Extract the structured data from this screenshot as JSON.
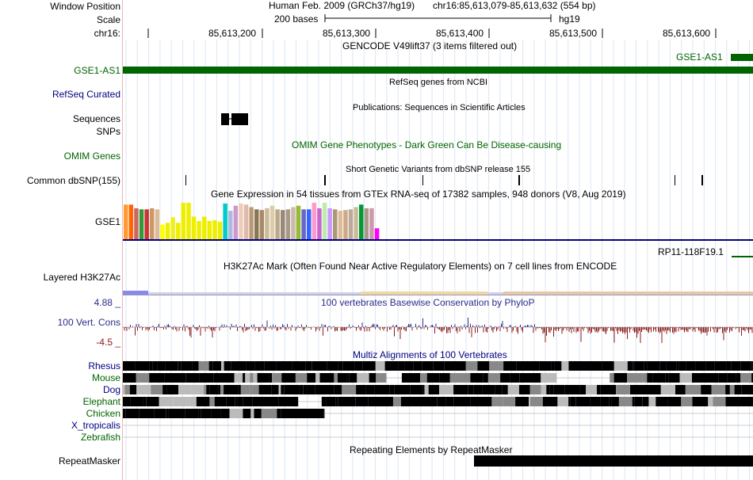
{
  "header": {
    "window_position_label": "Window Position",
    "scale_label": "Scale",
    "chrom_label": "chr16:",
    "assembly": "Human Feb. 2009 (GRCh37/hg19)",
    "position": "chr16:85,613,079-85,613,632 (554 bp)",
    "scale_text": "200 bases",
    "scale_db": "hg19",
    "ticks": [
      "85,613,200",
      "85,613,300",
      "85,613,400",
      "85,613,500",
      "85,613,600"
    ]
  },
  "tracks": {
    "gencode": {
      "title": "GENCODE V49lift37 (3 items filtered out)",
      "label": "GSE1-AS1",
      "item": "GSE1-AS1",
      "color": "#006400"
    },
    "refseq": {
      "title": "RefSeq genes from NCBI",
      "label": "RefSeq Curated"
    },
    "publications": {
      "title": "Publications: Sequences in Scientific Articles",
      "label": "Sequences"
    },
    "snps": {
      "label": "SNPs"
    },
    "omim": {
      "title": "OMIM Gene Phenotypes - Dark Green Can Be Disease-causing",
      "label": "OMIM Genes"
    },
    "dbsnp": {
      "title": "Short Genetic Variants from dbSNP release 155",
      "label": "Common dbSNP(155)"
    },
    "gtex": {
      "title": "Gene Expression in 54 tissues from GTEx RNA-seq of 17382 samples, 948 donors (V8, Aug 2019)",
      "label": "GSE1",
      "item": "RP11-118F19.1"
    },
    "h3k27ac": {
      "title": "H3K27Ac Mark (Often Found Near Active Regulatory Elements) on 7 cell lines from ENCODE",
      "label": "Layered H3K27Ac"
    },
    "phylop": {
      "title": "100 vertebrates Basewise Conservation by PhyloP",
      "label": "100 Vert. Cons",
      "max": "4.88 _",
      "min": "-4.5 _"
    },
    "multiz": {
      "title": "Multiz Alignments of 100 Vertebrates",
      "species": [
        "Rhesus",
        "Mouse",
        "Dog",
        "Elephant",
        "Chicken",
        "X_tropicalis",
        "Zebrafish"
      ]
    },
    "repeatmasker": {
      "title": "Repeating Elements by RepeatMasker",
      "label": "RepeatMasker"
    }
  },
  "colors": {
    "gencode_green": "#006400",
    "refseq_navy": "#000080",
    "phylop_pos": "#2c2c8c",
    "phylop_neg": "#8b1a1a",
    "grid": "#dde6f4",
    "divider": "#e8b8b8"
  },
  "gtex_bars": [
    {
      "color": "#ff9933",
      "level": 0.95
    },
    {
      "color": "#ff6600",
      "level": 0.95
    },
    {
      "color": "#cc6666",
      "level": 0.85
    },
    {
      "color": "#339933",
      "level": 0.82
    },
    {
      "color": "#cc3333",
      "level": 0.82
    },
    {
      "color": "#cc9966",
      "level": 0.85
    },
    {
      "color": "#ddbb99",
      "level": 0.82
    },
    {
      "color": "#ffff00",
      "level": 0.4
    },
    {
      "color": "#eeee00",
      "level": 0.45
    },
    {
      "color": "#eeee22",
      "level": 0.6
    },
    {
      "color": "#eeee00",
      "level": 0.45
    },
    {
      "color": "#eeee00",
      "level": 1.0
    },
    {
      "color": "#eeee00",
      "level": 1.0
    },
    {
      "color": "#eeee00",
      "level": 0.62
    },
    {
      "color": "#eeee00",
      "level": 0.5
    },
    {
      "color": "#eeee00",
      "level": 0.62
    },
    {
      "color": "#eeee00",
      "level": 0.5
    },
    {
      "color": "#eeee00",
      "level": 0.52
    },
    {
      "color": "#eeee00",
      "level": 0.48
    },
    {
      "color": "#00cccc",
      "level": 0.98
    },
    {
      "color": "#aabbdd",
      "level": 0.78
    },
    {
      "color": "#cc99cc",
      "level": 0.92
    },
    {
      "color": "#eeccbb",
      "level": 0.98
    },
    {
      "color": "#ddbbaa",
      "level": 0.95
    },
    {
      "color": "#bb9977",
      "level": 0.88
    },
    {
      "color": "#887755",
      "level": 0.82
    },
    {
      "color": "#aa8866",
      "level": 0.8
    },
    {
      "color": "#ccbb99",
      "level": 0.85
    },
    {
      "color": "#ddccaa",
      "level": 0.92
    },
    {
      "color": "#bbaa88",
      "level": 0.82
    },
    {
      "color": "#998877",
      "level": 0.8
    },
    {
      "color": "#aa9988",
      "level": 0.82
    },
    {
      "color": "#ccbbaa",
      "level": 0.88
    },
    {
      "color": "#99bb33",
      "level": 0.92
    },
    {
      "color": "#6666cc",
      "level": 0.82
    },
    {
      "color": "#3366ff",
      "level": 0.82
    },
    {
      "color": "#ff99cc",
      "level": 1.0
    },
    {
      "color": "#cc66cc",
      "level": 0.85
    },
    {
      "color": "#bbeeaa",
      "level": 1.0
    },
    {
      "color": "#cc99ff",
      "level": 0.85
    },
    {
      "color": "#aa9977",
      "level": 0.82
    },
    {
      "color": "#ddbb99",
      "level": 0.78
    },
    {
      "color": "#ccaa88",
      "level": 0.8
    },
    {
      "color": "#bbaa99",
      "level": 0.82
    },
    {
      "color": "#ccbb99",
      "level": 0.88
    },
    {
      "color": "#009933",
      "level": 0.95
    },
    {
      "color": "#aa9988",
      "level": 0.85
    },
    {
      "color": "#cc99aa",
      "level": 0.85
    },
    {
      "color": "#ff00ff",
      "level": 0.3
    }
  ]
}
